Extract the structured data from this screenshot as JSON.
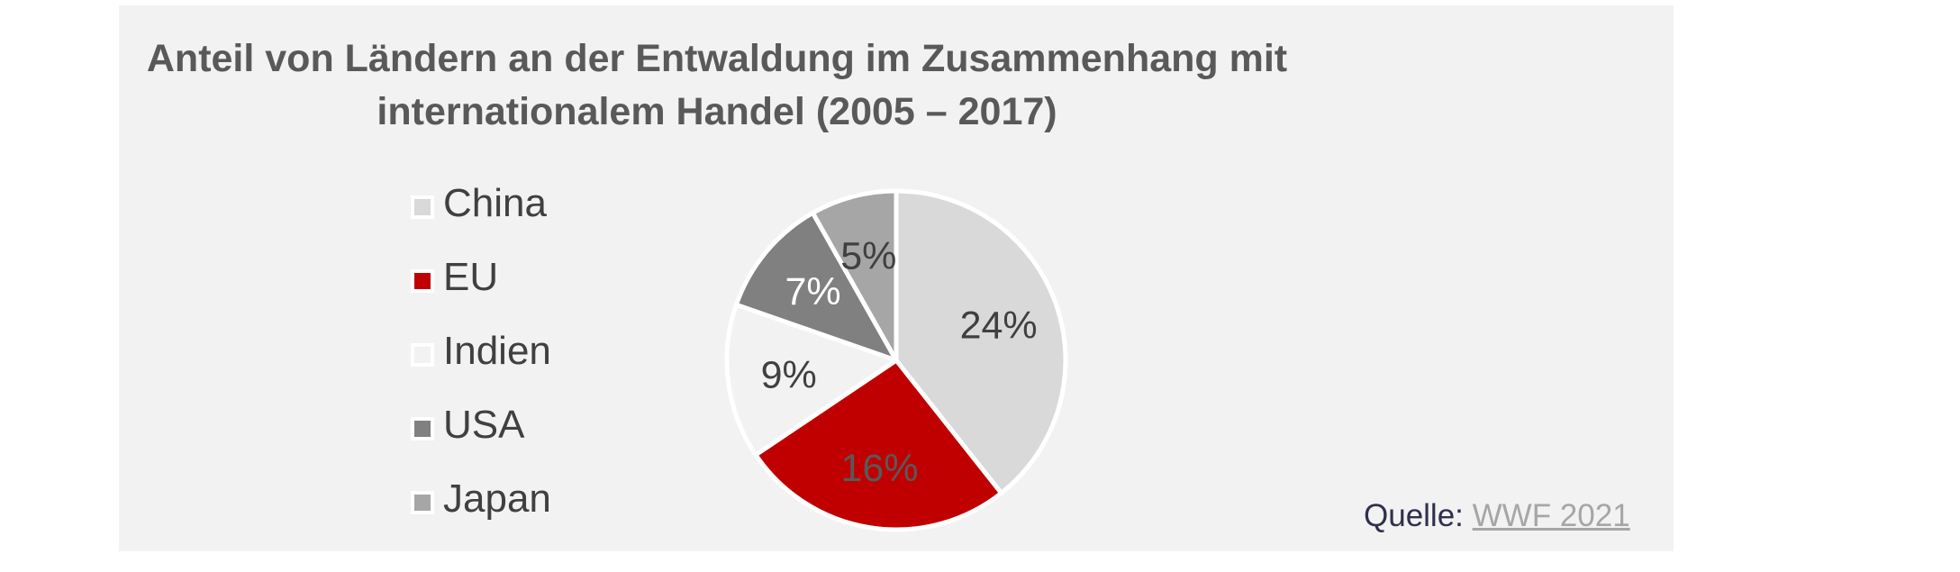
{
  "chart_data": {
    "type": "pie",
    "title": [
      "Anteil von Ländern an der Entwaldung im Zusammenhang mit",
      "internationalem Handel (2005 – 2017)"
    ],
    "categories": [
      "China",
      "EU",
      "Indien",
      "USA",
      "Japan"
    ],
    "values": [
      24,
      16,
      9,
      7,
      5
    ],
    "value_labels": [
      "24%",
      "16%",
      "9%",
      "7%",
      "5%"
    ],
    "colors": [
      "#d9d9d9",
      "#c00000",
      "#f2f2f2",
      "#808080",
      "#a6a6a6"
    ],
    "label_colors": [
      "#404040",
      "#595959",
      "#404040",
      "#ffffff",
      "#404040"
    ],
    "legend_position": "left",
    "start": "12 o'clock, clockwise"
  },
  "source": {
    "prefix": "Quelle: ",
    "link_text": "WWF 2021"
  }
}
